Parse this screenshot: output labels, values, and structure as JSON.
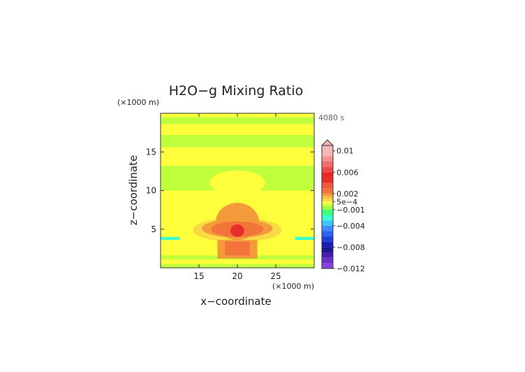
{
  "chart_data": {
    "type": "heatmap",
    "title": "H2O−g Mixing Ratio",
    "xlabel": "x−coordinate",
    "ylabel": "z−coordinate",
    "x_unit": "(×1000 m)",
    "y_unit": "(×1000 m)",
    "time_label": "4080 s",
    "xlim": [
      10,
      30
    ],
    "ylim": [
      0,
      20
    ],
    "x_ticks": [
      15,
      20,
      25
    ],
    "y_ticks": [
      5,
      10,
      15
    ],
    "colorbar": {
      "min": -0.012,
      "max": 0.011,
      "tick_values": [
        0.01,
        0.006,
        0.002,
        0.0005,
        -0.001,
        -0.004,
        -0.008,
        -0.012
      ],
      "tick_labels": [
        "0.01",
        "0.006",
        "0.002",
        "5e−4",
        "−0.001",
        "−0.004",
        "−0.008",
        "−0.012"
      ],
      "levels": [
        {
          "from": 0.009,
          "to": 0.011,
          "color": "#f7b7b7"
        },
        {
          "from": 0.008,
          "to": 0.009,
          "color": "#f49090"
        },
        {
          "from": 0.007,
          "to": 0.008,
          "color": "#f26d6d"
        },
        {
          "from": 0.006,
          "to": 0.007,
          "color": "#ef4a4a"
        },
        {
          "from": 0.005,
          "to": 0.006,
          "color": "#ea2424"
        },
        {
          "from": 0.004,
          "to": 0.005,
          "color": "#e82b2b"
        },
        {
          "from": 0.003,
          "to": 0.004,
          "color": "#f05a3a"
        },
        {
          "from": 0.002,
          "to": 0.003,
          "color": "#f2743a"
        },
        {
          "from": 0.0015,
          "to": 0.002,
          "color": "#f49a3a"
        },
        {
          "from": 0.001,
          "to": 0.0015,
          "color": "#f8bf40"
        },
        {
          "from": 0.0005,
          "to": 0.001,
          "color": "#fada44"
        },
        {
          "from": 0.0,
          "to": 0.0005,
          "color": "#ffff3c"
        },
        {
          "from": -0.0005,
          "to": 0.0,
          "color": "#bfff3c"
        },
        {
          "from": -0.001,
          "to": -0.0005,
          "color": "#96ff3c"
        },
        {
          "from": -0.002,
          "to": -0.001,
          "color": "#3cff7a"
        },
        {
          "from": -0.003,
          "to": -0.002,
          "color": "#3cffd0"
        },
        {
          "from": -0.004,
          "to": -0.003,
          "color": "#3cc4ff"
        },
        {
          "from": -0.005,
          "to": -0.004,
          "color": "#3c8cff"
        },
        {
          "from": -0.006,
          "to": -0.005,
          "color": "#2c62f0"
        },
        {
          "from": -0.007,
          "to": -0.006,
          "color": "#1c3cd8"
        },
        {
          "from": -0.008,
          "to": -0.007,
          "color": "#1a1ab8"
        },
        {
          "from": -0.009,
          "to": -0.008,
          "color": "#1c1490"
        },
        {
          "from": -0.01,
          "to": -0.009,
          "color": "#4a1cb0"
        },
        {
          "from": -0.011,
          "to": -0.01,
          "color": "#6a2ccc"
        },
        {
          "from": -0.012,
          "to": -0.011,
          "color": "#8a40e0"
        }
      ]
    },
    "field_regions": [
      {
        "shape": "rect",
        "x": [
          10,
          30
        ],
        "z": [
          0,
          20
        ],
        "value": 0.0003
      },
      {
        "shape": "rect",
        "x": [
          10,
          30
        ],
        "z": [
          15,
          19.5
        ],
        "value": -0.0004
      },
      {
        "shape": "rect",
        "x": [
          10,
          30
        ],
        "z": [
          17.2,
          18.6
        ],
        "value": 0.0003
      },
      {
        "shape": "rect",
        "x": [
          10,
          30
        ],
        "z": [
          15.0,
          15.6
        ],
        "value": 0.0003
      },
      {
        "shape": "rect",
        "x": [
          10,
          30
        ],
        "z": [
          10.0,
          13.2
        ],
        "value": -0.0004
      },
      {
        "shape": "rect",
        "x": [
          10,
          30
        ],
        "z": [
          1.1,
          1.6
        ],
        "value": -0.0003
      },
      {
        "shape": "rect",
        "x": [
          10,
          30
        ],
        "z": [
          0,
          0.5
        ],
        "value": -0.0003
      },
      {
        "shape": "ellipse",
        "cx": 20,
        "cz": 11,
        "rx": 3.6,
        "rz": 1.6,
        "value": 0.0003
      },
      {
        "shape": "ellipse",
        "cx": 20,
        "cz": 4.9,
        "rx": 5.8,
        "rz": 1.6,
        "value": 0.0008
      },
      {
        "shape": "ellipse",
        "cx": 20,
        "cz": 5.1,
        "rx": 4.6,
        "rz": 1.2,
        "value": 0.0018
      },
      {
        "shape": "ellipse",
        "cx": 20,
        "cz": 6.0,
        "rx": 2.8,
        "rz": 2.4,
        "value": 0.0018
      },
      {
        "shape": "ellipse",
        "cx": 20,
        "cz": 5.0,
        "rx": 3.4,
        "rz": 1.0,
        "value": 0.0028
      },
      {
        "shape": "ellipse",
        "cx": 20,
        "cz": 4.8,
        "rx": 0.9,
        "rz": 0.8,
        "value": 0.0045
      },
      {
        "shape": "rect",
        "x": [
          17.4,
          22.6
        ],
        "z": [
          1.2,
          3.6
        ],
        "value": 0.0018
      },
      {
        "shape": "rect",
        "x": [
          18.4,
          21.6
        ],
        "z": [
          1.6,
          3.4
        ],
        "value": 0.0028
      },
      {
        "shape": "rect",
        "x": [
          10,
          12.5
        ],
        "z": [
          3.6,
          4.0
        ],
        "value": -0.0025
      },
      {
        "shape": "rect",
        "x": [
          27.5,
          30
        ],
        "z": [
          3.6,
          4.0
        ],
        "value": -0.0025
      }
    ]
  }
}
